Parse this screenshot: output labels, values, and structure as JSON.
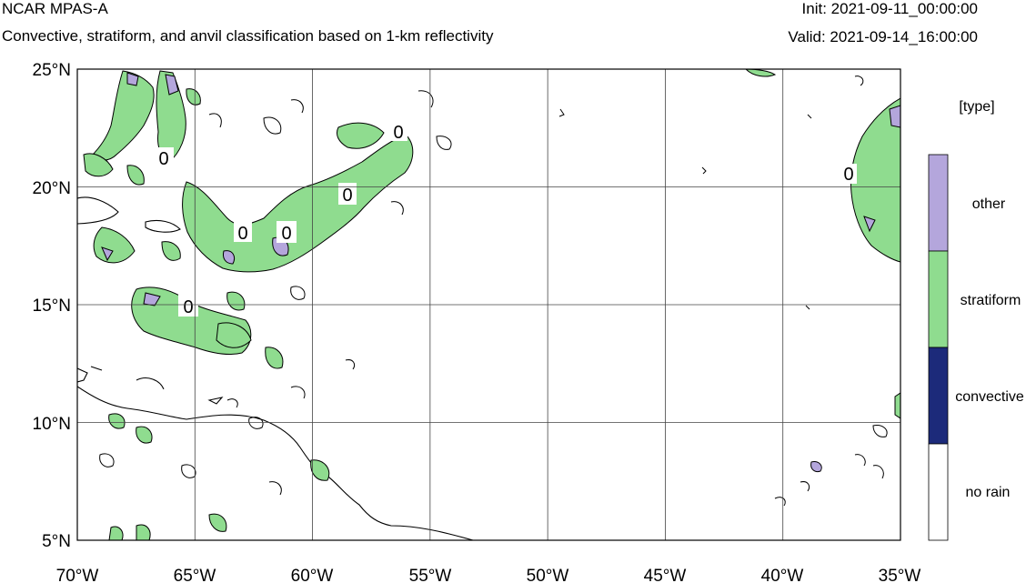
{
  "header": {
    "title": "NCAR MPAS-A",
    "subtitle": "Convective, stratiform, and anvil classification based on 1-km reflectivity",
    "init": "Init: 2021-09-11_00:00:00",
    "valid": "Valid: 2021-09-14_16:00:00"
  },
  "map": {
    "lat_ticks": [
      "25°N",
      "20°N",
      "15°N",
      "10°N",
      "5°N"
    ],
    "lon_ticks": [
      "70°W",
      "65°W",
      "60°W",
      "55°W",
      "50°W",
      "45°W",
      "40°W",
      "35°W"
    ],
    "lon_range": [
      -70,
      -35
    ],
    "lat_range": [
      5,
      25
    ],
    "gridlines": true,
    "contour_labels": [
      "0",
      "0",
      "0",
      "0",
      "0",
      "0",
      "0"
    ]
  },
  "legend": {
    "title": "[type]",
    "entries": [
      {
        "label": "other",
        "color": "#b4a6dc"
      },
      {
        "label": "stratiform",
        "color": "#8fdc8f"
      },
      {
        "label": "convective",
        "color": "#1c2a7a"
      },
      {
        "label": "no rain",
        "color": "#ffffff"
      }
    ]
  },
  "colors": {
    "other": "#b4a6dc",
    "stratiform": "#8fdc8f",
    "convective": "#1c2a7a",
    "norain": "#ffffff"
  }
}
